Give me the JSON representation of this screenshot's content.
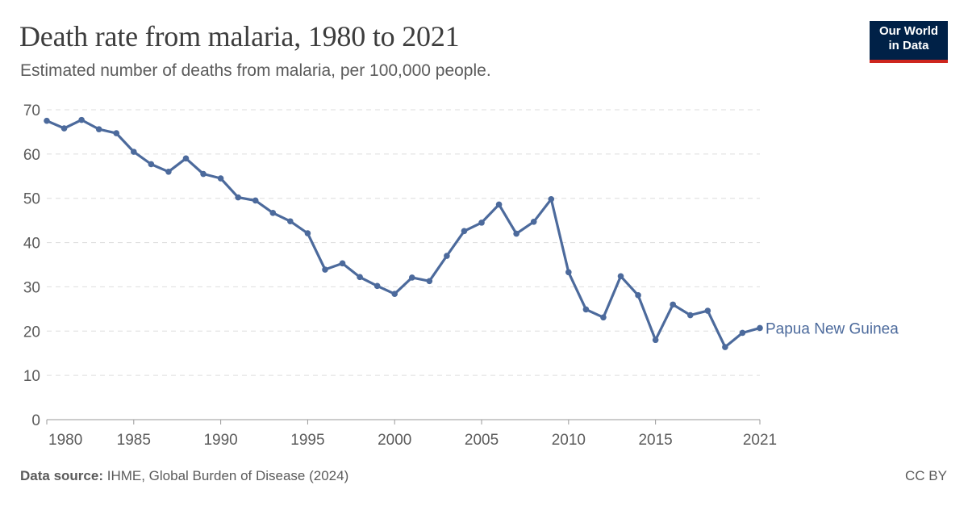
{
  "header": {
    "title": "Death rate from malaria, 1980 to 2021",
    "subtitle": "Estimated number of deaths from malaria, per 100,000 people."
  },
  "logo": {
    "line1": "Our World",
    "line2": "in Data"
  },
  "footer": {
    "source_label": "Data source:",
    "source_text": "IHME, Global Burden of Disease (2024)",
    "license": "CC BY"
  },
  "colors": {
    "series": "#4c6a9c",
    "grid": "#dddddd",
    "text": "#5b5b5b",
    "logo_bg": "#002147",
    "logo_accent": "#ce261e"
  },
  "chart_data": {
    "type": "line",
    "title": "Death rate from malaria, 1980 to 2021",
    "subtitle": "Estimated number of deaths from malaria, per 100,000 people.",
    "xlabel": "",
    "ylabel": "",
    "xlim": [
      1980,
      2021
    ],
    "ylim": [
      0,
      70
    ],
    "x_ticks": [
      1980,
      1985,
      1990,
      1995,
      2000,
      2005,
      2010,
      2015,
      2021
    ],
    "y_ticks": [
      0,
      10,
      20,
      30,
      40,
      50,
      60,
      70
    ],
    "grid": "horizontal dashed",
    "legend": "inline label at line end",
    "series": [
      {
        "name": "Papua New Guinea",
        "x": [
          1980,
          1981,
          1982,
          1983,
          1984,
          1985,
          1986,
          1987,
          1988,
          1989,
          1990,
          1991,
          1992,
          1993,
          1994,
          1995,
          1996,
          1997,
          1998,
          1999,
          2000,
          2001,
          2002,
          2003,
          2004,
          2005,
          2006,
          2007,
          2008,
          2009,
          2010,
          2011,
          2012,
          2013,
          2014,
          2015,
          2016,
          2017,
          2018,
          2019,
          2020,
          2021
        ],
        "y": [
          67.5,
          65.8,
          67.7,
          65.6,
          64.7,
          60.5,
          57.7,
          56.0,
          59.0,
          55.5,
          54.5,
          50.2,
          49.5,
          46.7,
          44.8,
          42.1,
          33.9,
          35.3,
          32.2,
          30.2,
          28.4,
          32.1,
          31.3,
          37.0,
          42.6,
          44.5,
          48.6,
          42.0,
          44.7,
          49.8,
          33.3,
          24.9,
          23.1,
          32.4,
          28.1,
          18.0,
          26.0,
          23.6,
          24.6,
          16.4,
          19.6,
          20.7
        ]
      }
    ]
  }
}
